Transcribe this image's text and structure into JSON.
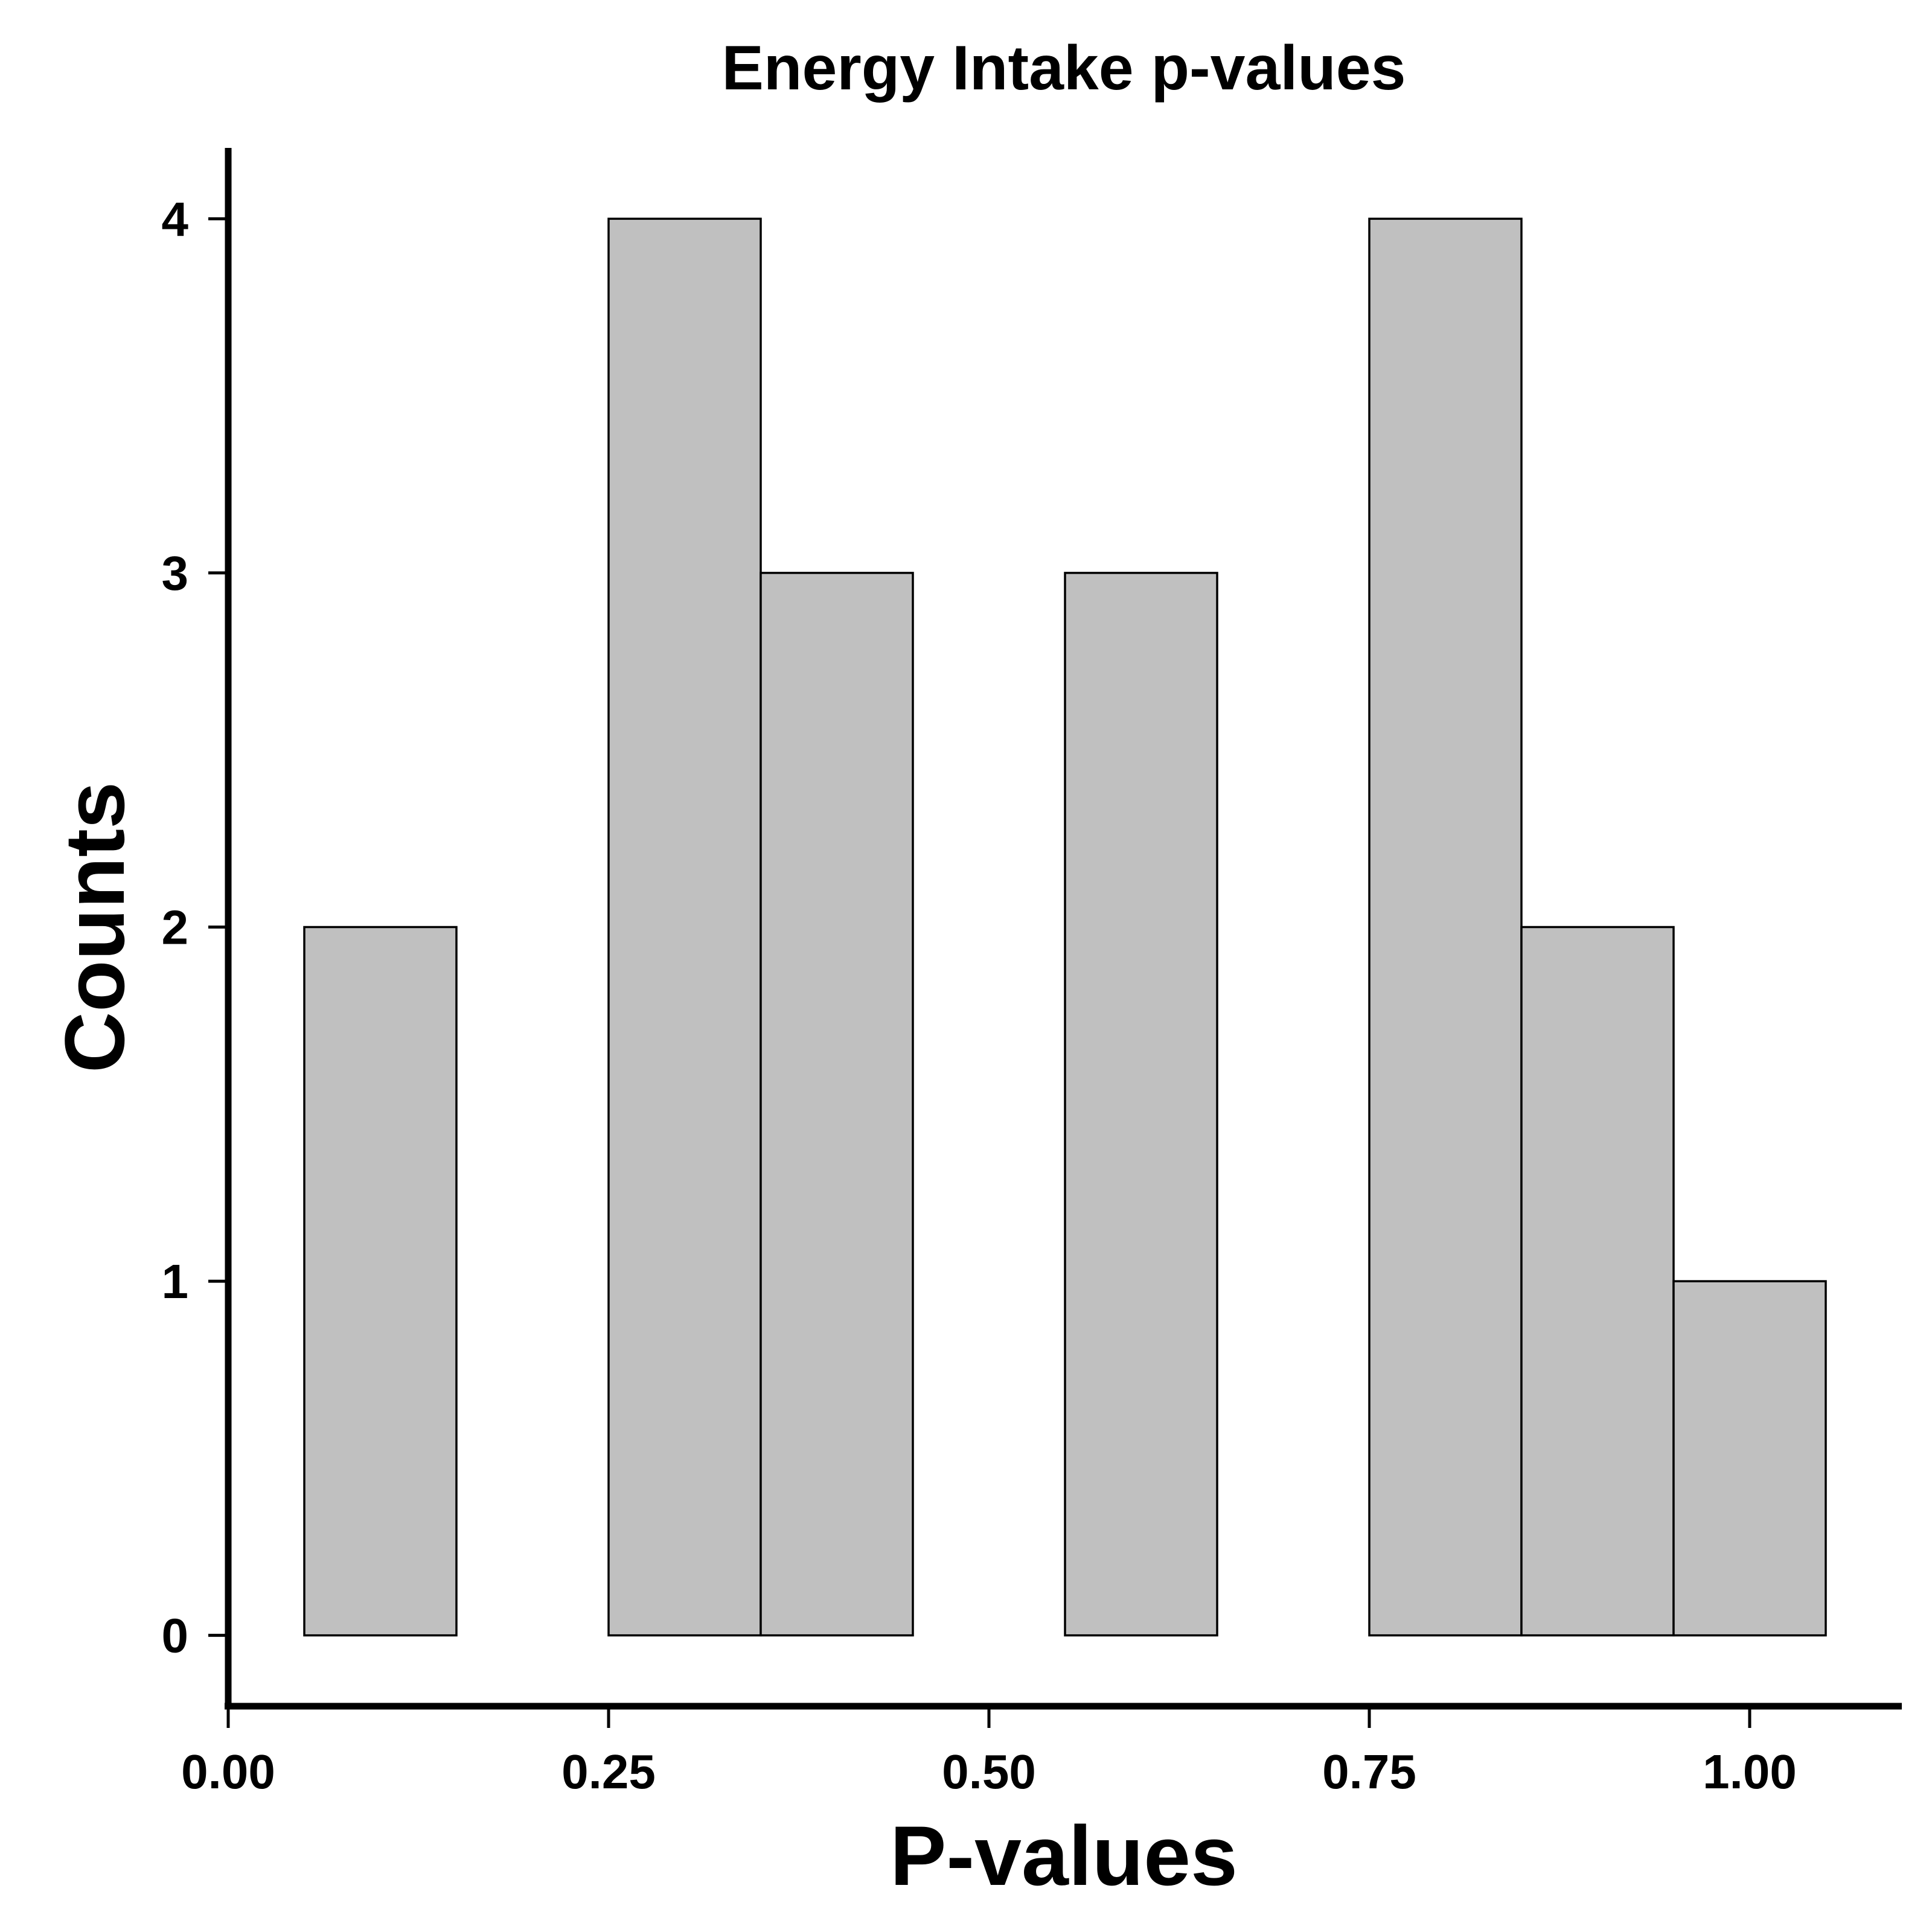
{
  "chart_data": {
    "type": "bar",
    "title": "Energy Intake p-values",
    "xlabel": "P-values",
    "ylabel": "Counts",
    "xlim": [
      0.0,
      1.1
    ],
    "ylim": [
      -0.2,
      4.2
    ],
    "bin_width": 0.1,
    "x_ticks": [
      0.0,
      0.25,
      0.5,
      0.75,
      1.0
    ],
    "x_tick_labels": [
      "0.00",
      "0.25",
      "0.50",
      "0.75",
      "1.00"
    ],
    "y_ticks": [
      0,
      1,
      2,
      3,
      4
    ],
    "y_tick_labels": [
      "0",
      "1",
      "2",
      "3",
      "4"
    ],
    "bins": [
      {
        "center": 0.1,
        "count": 2
      },
      {
        "center": 0.2,
        "count": 0
      },
      {
        "center": 0.3,
        "count": 4
      },
      {
        "center": 0.4,
        "count": 3
      },
      {
        "center": 0.5,
        "count": 0
      },
      {
        "center": 0.6,
        "count": 3
      },
      {
        "center": 0.7,
        "count": 0
      },
      {
        "center": 0.8,
        "count": 4
      },
      {
        "center": 0.9,
        "count": 2
      },
      {
        "center": 1.0,
        "count": 1
      }
    ],
    "bar_color": "#c0c0c0",
    "grid": false,
    "legend": "none"
  }
}
